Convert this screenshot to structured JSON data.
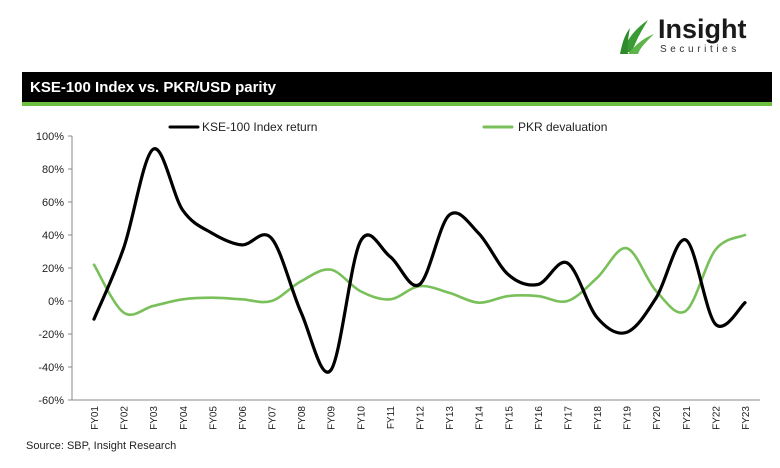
{
  "brand": {
    "name": "Insight",
    "sub": "Securities"
  },
  "title": "KSE-100 Index vs. PKR/USD parity",
  "source": "Source: SBP, Insight Research",
  "colors": {
    "index": "#000000",
    "pkr": "#79c05a",
    "accent": "#6cbf3f",
    "logo": "#3a9b35"
  },
  "chart_data": {
    "type": "line",
    "categories": [
      "FY01",
      "FY02",
      "FY03",
      "FY04",
      "FY05",
      "FY06",
      "FY07",
      "FY08",
      "FY09",
      "FY10",
      "FY11",
      "FY12",
      "FY13",
      "FY14",
      "FY15",
      "FY16",
      "FY17",
      "FY18",
      "FY19",
      "FY20",
      "FY21",
      "FY22",
      "FY23"
    ],
    "series": [
      {
        "name": "KSE-100 Index return",
        "color": "#000000",
        "values": [
          -11,
          32,
          92,
          55,
          41,
          34,
          38,
          -7,
          -42,
          36,
          27,
          10,
          52,
          41,
          16,
          10,
          23,
          -10,
          -19,
          2,
          37,
          -14,
          -1
        ]
      },
      {
        "name": "PKR devaluation",
        "color": "#79c05a",
        "values": [
          22,
          -7,
          -3,
          1,
          2,
          1,
          0,
          12,
          19,
          6,
          1,
          9,
          5,
          -1,
          3,
          3,
          0,
          14,
          32,
          6,
          -6,
          31,
          40
        ]
      }
    ],
    "ylim": [
      -60,
      100
    ],
    "yticks": [
      -60,
      -40,
      -20,
      0,
      20,
      40,
      60,
      80,
      100
    ],
    "ytick_format": "percent",
    "grid": false,
    "legend": "top"
  }
}
